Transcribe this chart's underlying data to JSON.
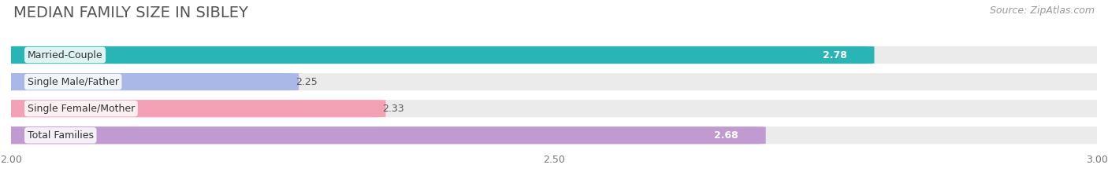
{
  "title": "MEDIAN FAMILY SIZE IN SIBLEY",
  "source": "Source: ZipAtlas.com",
  "categories": [
    "Married-Couple",
    "Single Male/Father",
    "Single Female/Mother",
    "Total Families"
  ],
  "values": [
    2.78,
    2.25,
    2.33,
    2.68
  ],
  "bar_colors": [
    "#29b5b5",
    "#aab8e8",
    "#f4a0b5",
    "#c09ad0"
  ],
  "value_inside": [
    true,
    false,
    false,
    true
  ],
  "xlim_min": 2.0,
  "xlim_max": 3.0,
  "xticks": [
    2.0,
    2.5,
    3.0
  ],
  "background_color": "#ffffff",
  "bar_bg_color": "#ebebeb",
  "title_fontsize": 14,
  "source_fontsize": 9,
  "label_fontsize": 9,
  "value_fontsize": 9
}
